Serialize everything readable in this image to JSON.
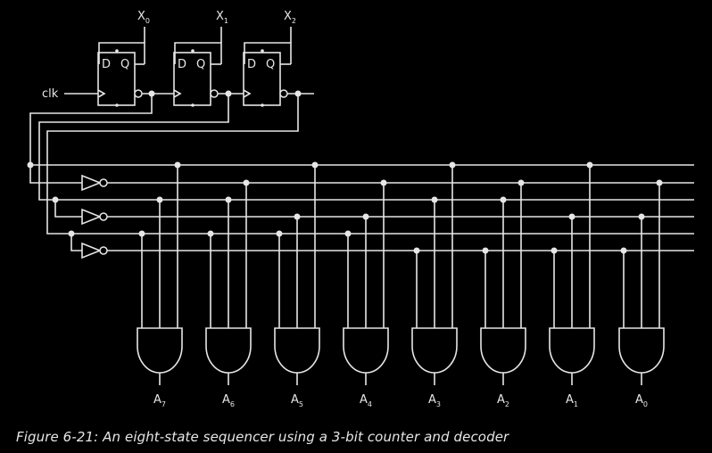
{
  "clock_label": "clk",
  "flip_flops": [
    {
      "d_label": "D",
      "q_label": "Q",
      "output_name": "X",
      "output_sub": "0"
    },
    {
      "d_label": "D",
      "q_label": "Q",
      "output_name": "X",
      "output_sub": "1"
    },
    {
      "d_label": "D",
      "q_label": "Q",
      "output_name": "X",
      "output_sub": "2"
    }
  ],
  "decoder_outputs": [
    {
      "name": "A",
      "sub": "7"
    },
    {
      "name": "A",
      "sub": "6"
    },
    {
      "name": "A",
      "sub": "5"
    },
    {
      "name": "A",
      "sub": "4"
    },
    {
      "name": "A",
      "sub": "3"
    },
    {
      "name": "A",
      "sub": "2"
    },
    {
      "name": "A",
      "sub": "1"
    },
    {
      "name": "A",
      "sub": "0"
    }
  ],
  "caption": "Figure 6-21: An eight-state sequencer using a 3-bit counter and decoder"
}
